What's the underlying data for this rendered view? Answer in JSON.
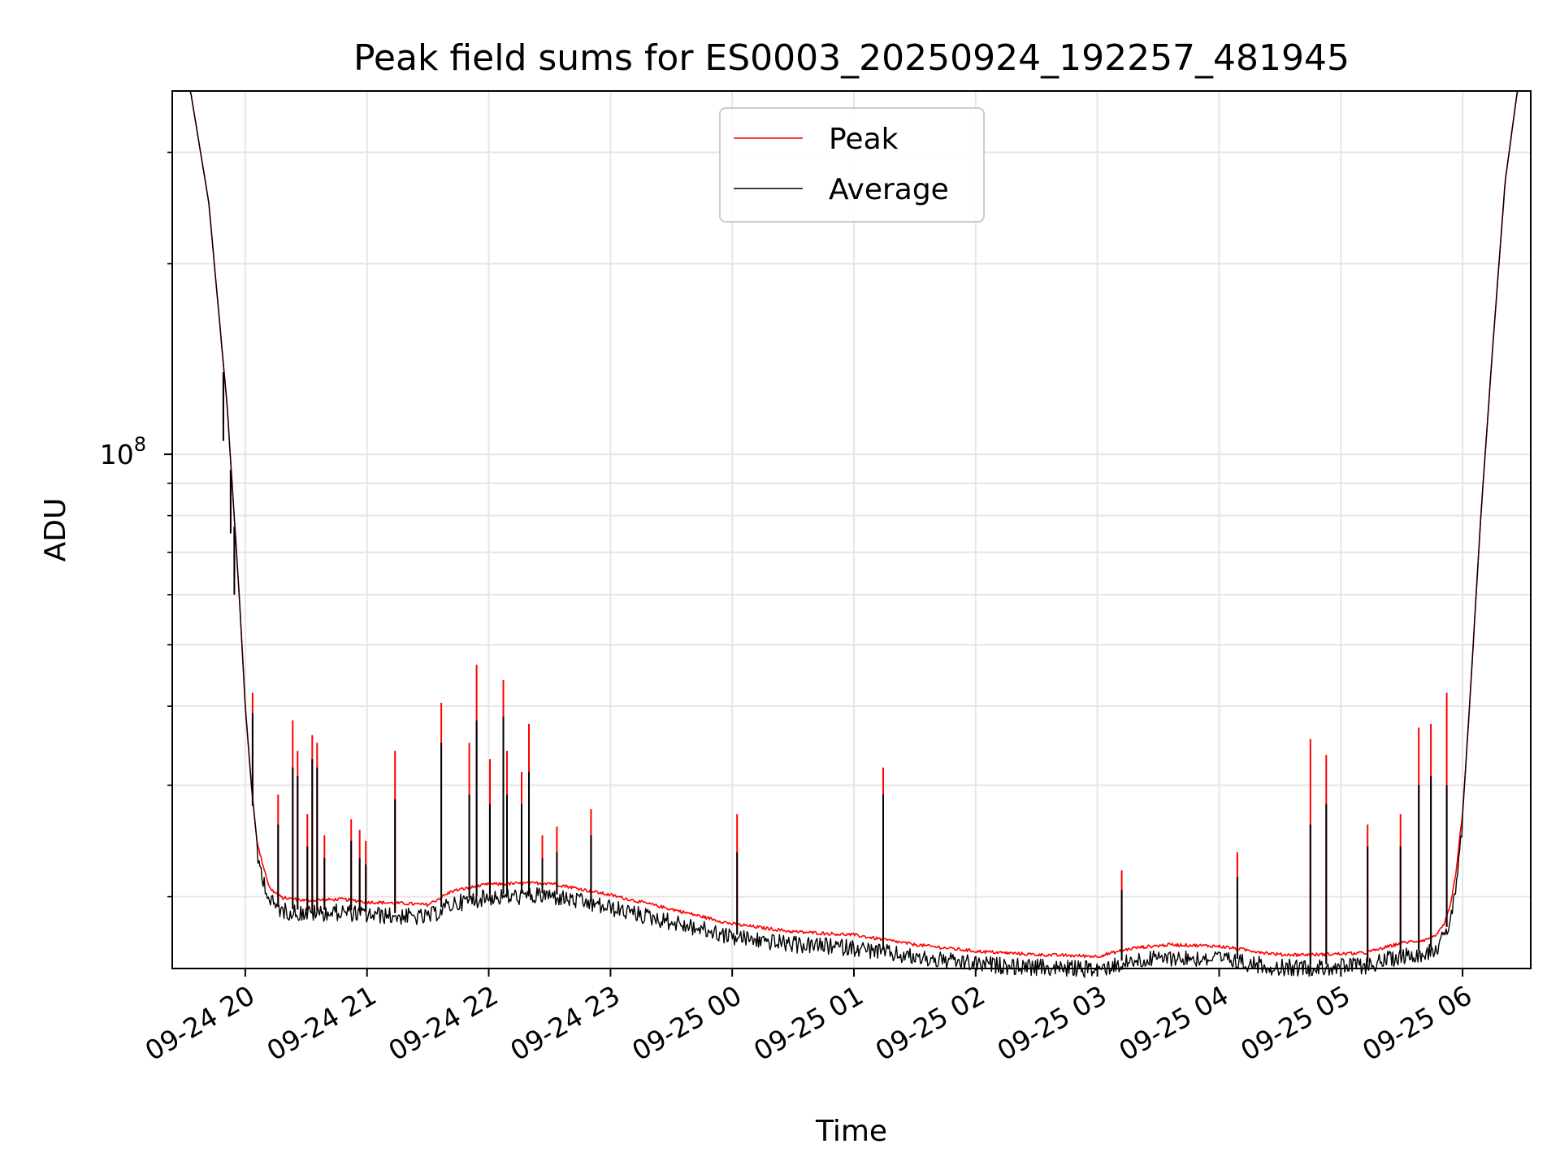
{
  "chart_data": {
    "type": "line",
    "title": "Peak field sums for ES0003_20250924_192257_481945",
    "xlabel": "Time",
    "ylabel": "ADU",
    "yscale": "log",
    "grid": true,
    "legend_position": "top-center",
    "x_unit": "hours since 2025-09-24 00:00",
    "xlim": [
      19.4,
      30.56
    ],
    "ylim": [
      15400000,
      375000000
    ],
    "x_ticks": [
      {
        "value": 20,
        "label": "09-24 20"
      },
      {
        "value": 21,
        "label": "09-24 21"
      },
      {
        "value": 22,
        "label": "09-24 22"
      },
      {
        "value": 23,
        "label": "09-24 23"
      },
      {
        "value": 24,
        "label": "09-25 00"
      },
      {
        "value": 25,
        "label": "09-25 01"
      },
      {
        "value": 26,
        "label": "09-25 02"
      },
      {
        "value": 27,
        "label": "09-25 03"
      },
      {
        "value": 28,
        "label": "09-25 04"
      },
      {
        "value": 29,
        "label": "09-25 05"
      },
      {
        "value": 30,
        "label": "09-25 06"
      }
    ],
    "y_major_tick": {
      "value": 100000000,
      "base": "10",
      "exponent": "8"
    },
    "y_minor_ticks": [
      20000000,
      30000000,
      40000000,
      50000000,
      60000000,
      70000000,
      80000000,
      90000000,
      200000000,
      300000000
    ],
    "series": [
      {
        "name": "Peak",
        "color": "#ff0000"
      },
      {
        "name": "Average",
        "color": "#000000"
      }
    ],
    "baseline": {
      "x": [
        19.4,
        19.55,
        19.7,
        19.85,
        19.95,
        20.0,
        20.05,
        20.1,
        20.2,
        20.3,
        20.5,
        20.8,
        21.0,
        21.3,
        21.5,
        21.7,
        22.0,
        22.5,
        23.0,
        23.5,
        24.0,
        24.5,
        25.0,
        25.5,
        26.0,
        26.5,
        27.0,
        27.3,
        27.6,
        28.0,
        28.5,
        28.8,
        29.2,
        29.5,
        29.7,
        29.8,
        29.85,
        29.9,
        29.95,
        30.0,
        30.05,
        30.1,
        30.15,
        30.25,
        30.35,
        30.45,
        30.56
      ],
      "y": [
        375000000,
        375000000,
        250000000,
        120000000,
        60000000,
        40000000,
        30000000,
        24000000,
        20500000,
        19800000,
        19600000,
        19700000,
        19500000,
        19400000,
        19300000,
        20300000,
        20800000,
        20900000,
        20000000,
        19000000,
        18000000,
        17500000,
        17300000,
        16700000,
        16300000,
        16100000,
        16000000,
        16500000,
        16700000,
        16600000,
        16100000,
        16100000,
        16200000,
        16800000,
        17000000,
        17400000,
        18000000,
        19200000,
        22000000,
        27000000,
        38000000,
        55000000,
        80000000,
        150000000,
        270000000,
        375000000,
        375000000
      ]
    },
    "spikes": [
      {
        "x": 19.82,
        "peak": 112000000,
        "avg": 105000000
      },
      {
        "x": 19.88,
        "peak": 80000000,
        "avg": 75000000
      },
      {
        "x": 19.91,
        "peak": 64000000,
        "avg": 60000000
      },
      {
        "x": 20.06,
        "peak": 42000000,
        "avg": 39000000
      },
      {
        "x": 20.27,
        "peak": 29000000,
        "avg": 26000000
      },
      {
        "x": 20.39,
        "peak": 38000000,
        "avg": 32000000
      },
      {
        "x": 20.43,
        "peak": 34000000,
        "avg": 31000000
      },
      {
        "x": 20.51,
        "peak": 27000000,
        "avg": 24000000
      },
      {
        "x": 20.55,
        "peak": 36000000,
        "avg": 33000000
      },
      {
        "x": 20.59,
        "peak": 35000000,
        "avg": 32000000
      },
      {
        "x": 20.65,
        "peak": 25000000,
        "avg": 23000000
      },
      {
        "x": 20.87,
        "peak": 26500000,
        "avg": 24500000
      },
      {
        "x": 20.94,
        "peak": 25500000,
        "avg": 23000000
      },
      {
        "x": 20.99,
        "peak": 24500000,
        "avg": 22500000
      },
      {
        "x": 21.23,
        "peak": 34000000,
        "avg": 28500000
      },
      {
        "x": 21.61,
        "peak": 40500000,
        "avg": 35000000
      },
      {
        "x": 21.84,
        "peak": 35000000,
        "avg": 29000000
      },
      {
        "x": 21.9,
        "peak": 46500000,
        "avg": 38000000
      },
      {
        "x": 22.01,
        "peak": 33000000,
        "avg": 28000000
      },
      {
        "x": 22.12,
        "peak": 44000000,
        "avg": 38500000
      },
      {
        "x": 22.15,
        "peak": 34000000,
        "avg": 29000000
      },
      {
        "x": 22.27,
        "peak": 31500000,
        "avg": 28000000
      },
      {
        "x": 22.33,
        "peak": 37500000,
        "avg": 31500000
      },
      {
        "x": 22.44,
        "peak": 25000000,
        "avg": 23000000
      },
      {
        "x": 22.56,
        "peak": 25800000,
        "avg": 23500000
      },
      {
        "x": 22.84,
        "peak": 27500000,
        "avg": 25000000
      },
      {
        "x": 24.04,
        "peak": 27000000,
        "avg": 23500000
      },
      {
        "x": 25.24,
        "peak": 32000000,
        "avg": 29000000
      },
      {
        "x": 27.2,
        "peak": 22000000,
        "avg": 20500000
      },
      {
        "x": 28.15,
        "peak": 23500000,
        "avg": 21500000
      },
      {
        "x": 28.75,
        "peak": 35500000,
        "avg": 26000000
      },
      {
        "x": 28.88,
        "peak": 33500000,
        "avg": 28000000
      },
      {
        "x": 29.22,
        "peak": 26000000,
        "avg": 24000000
      },
      {
        "x": 29.49,
        "peak": 27000000,
        "avg": 24000000
      },
      {
        "x": 29.64,
        "peak": 37000000,
        "avg": 30000000
      },
      {
        "x": 29.74,
        "peak": 37500000,
        "avg": 31000000
      },
      {
        "x": 29.87,
        "peak": 42000000,
        "avg": 30000000
      }
    ]
  }
}
